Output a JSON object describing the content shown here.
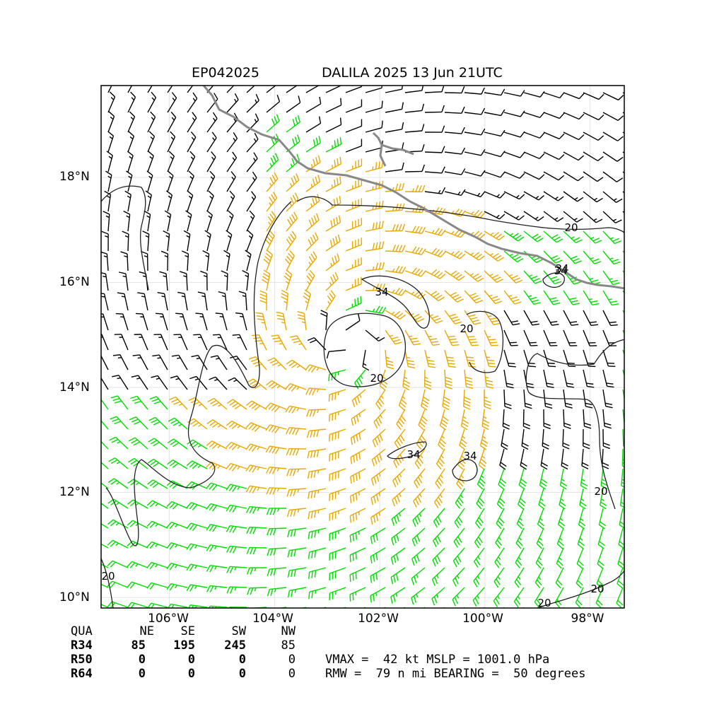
{
  "title": {
    "storm_id": "EP042025",
    "storm_name_time": "DALILA 2025 13 Jun 21UTC"
  },
  "axes": {
    "y_ticks": [
      "18°N",
      "16°N",
      "14°N",
      "12°N",
      "10°N"
    ],
    "y_values": [
      18,
      16,
      14,
      12,
      10
    ],
    "x_ticks": [
      "106°W",
      "104°W",
      "102°W",
      "100°W",
      "98°W"
    ],
    "x_values": [
      -106,
      -104,
      -102,
      -100,
      -98
    ],
    "lon_range": [
      -107.3,
      -97.35
    ],
    "lat_range": [
      9.8,
      19.75
    ]
  },
  "contour_labels": [
    "20",
    "34",
    "34",
    "20",
    "20",
    "34",
    "34",
    "20",
    "20",
    "20",
    "20",
    "34"
  ],
  "colors": {
    "weak_wind": "#000000",
    "gale_wind": "#00dd00",
    "storm_wind": "#e8a800",
    "coastline": "#888888",
    "contour": "#222222"
  },
  "radii_table": {
    "header": [
      "QUA",
      "NE",
      "SE",
      "SW",
      "NW"
    ],
    "rows": [
      {
        "label": "R34",
        "values": [
          "85",
          "195",
          "245",
          "85"
        ]
      },
      {
        "label": "R50",
        "values": [
          "0",
          "0",
          "0",
          "0"
        ]
      },
      {
        "label": "R64",
        "values": [
          "0",
          "0",
          "0",
          "0"
        ]
      }
    ]
  },
  "stats": {
    "line1": "VMAX =  42 kt MSLP = 1001.0 hPa",
    "line2": "RMW =  79 n mi BEARING =  50 degrees"
  },
  "storm_center": {
    "lon": -102.6,
    "lat": 14.9
  }
}
